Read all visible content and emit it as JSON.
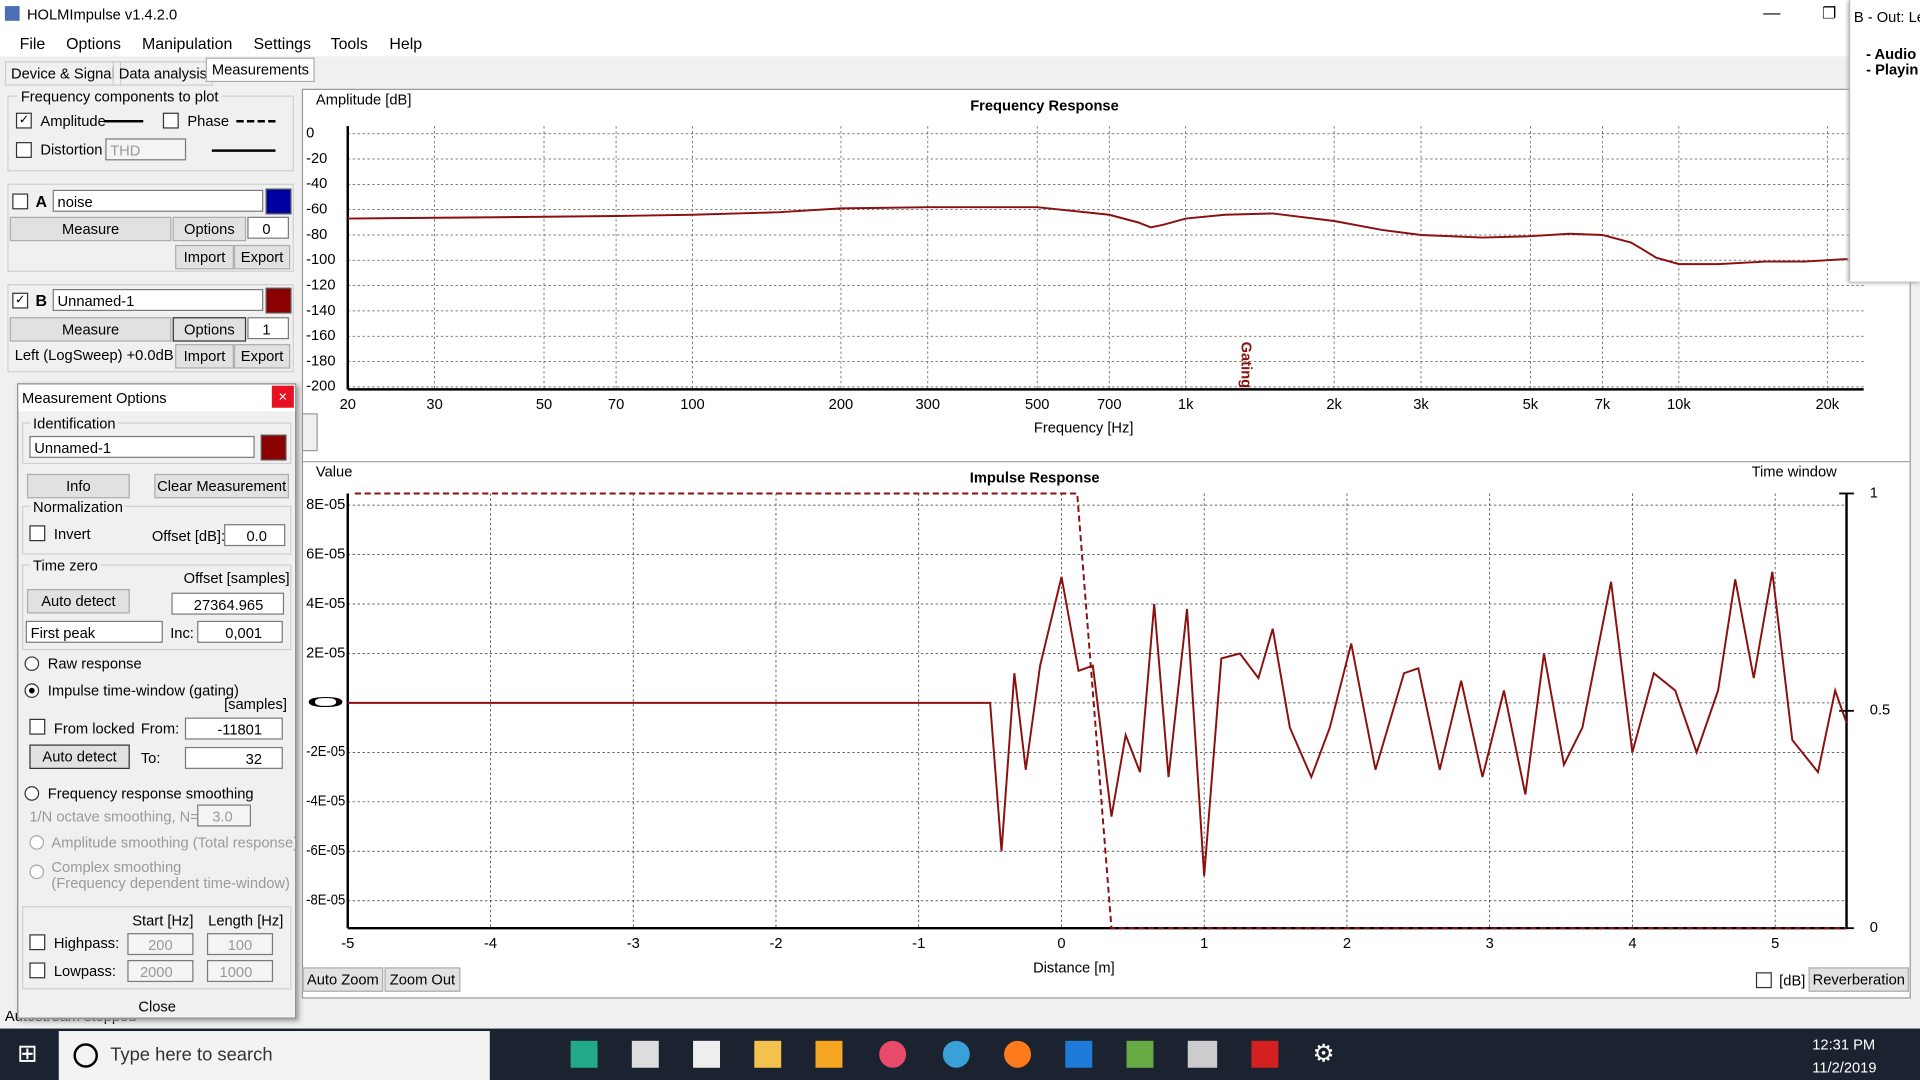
{
  "window": {
    "title": "HOLMImpulse  v1.4.2.0"
  },
  "menu": [
    "File",
    "Options",
    "Manipulation",
    "Settings",
    "Tools",
    "Help"
  ],
  "tabs": [
    "Device & Signal",
    "Data analysis",
    "Measurements"
  ],
  "plot_panel": {
    "title": "Frequency components to plot",
    "amplitude": "Amplitude",
    "phase": "Phase",
    "distortion": "Distortion",
    "distortion_type": "THD"
  },
  "channel_a": {
    "label": "A",
    "name": "noise",
    "measure": "Measure",
    "options": "Options",
    "count": "0",
    "import": "Import",
    "export": "Export"
  },
  "channel_b": {
    "label": "B",
    "name": "Unnamed-1",
    "measure": "Measure",
    "options": "Options",
    "count": "1",
    "import": "Import",
    "export": "Export",
    "info": "Left (LogSweep) +0.0dB"
  },
  "dialog": {
    "title": "Measurement Options",
    "identification": "Identification",
    "name": "Unnamed-1",
    "info": "Info",
    "clear": "Clear Measurement",
    "normalization": "Normalization",
    "invert": "Invert",
    "offset_db": "Offset [dB]:",
    "offset_db_value": "0.0",
    "time_zero": "Time zero",
    "offset_samples": "Offset [samples]",
    "auto_detect": "Auto detect",
    "offset_value": "27364.965",
    "peak_mode": "First peak",
    "inc": "Inc:",
    "inc_value": "0,001",
    "raw": "Raw response",
    "gating": "Impulse time-window (gating)",
    "samples": "[samples]",
    "from_locked": "From locked",
    "from": "From:",
    "from_value": "-11801",
    "auto_detect_2": "Auto detect",
    "to": "To:",
    "to_value": "32",
    "smoothing": "Frequency response smoothing",
    "octave": "1/N octave smoothing, N=",
    "octave_value": "3.0",
    "amp_smoothing": "Amplitude smoothing (Total response)",
    "complex_smoothing": "Complex smoothing",
    "complex_note": "(Frequency dependent time-window)",
    "start": "Start [Hz]",
    "length": "Length [Hz]",
    "highpass": "Highpass:",
    "hp_start": "200",
    "hp_length": "100",
    "lowpass": "Lowpass:",
    "lp_start": "2000",
    "lp_length": "1000",
    "close": "Close"
  },
  "status": "Autostream stopped",
  "bottom": {
    "auto_zoom": "Auto Zoom",
    "zoom_out": "Zoom Out",
    "db": "[dB]",
    "reverberation": "Reverberation"
  },
  "popup": {
    "title": "B - Out: Le",
    "line1": "- Audio",
    "line2": "- Playin"
  },
  "taskbar": {
    "search": "Type here to search",
    "time": "12:31 PM",
    "date": "11/2/2019"
  },
  "chart_data": [
    {
      "type": "line",
      "title": "Frequency Response",
      "ylabel": "Amplitude [dB]",
      "xlabel": "Frequency [Hz]",
      "xscale": "log",
      "grid": true,
      "color": "#8b1010",
      "xlim": [
        20,
        23700
      ],
      "ylim": [
        -202,
        6
      ],
      "xticks": [
        20,
        30,
        50,
        70,
        100,
        200,
        300,
        500,
        700,
        {
          "value": 1000,
          "label": "1k"
        },
        {
          "value": 2000,
          "label": "2k"
        },
        {
          "value": 3000,
          "label": "3k"
        },
        {
          "value": 5000,
          "label": "5k"
        },
        {
          "value": 7000,
          "label": "7k"
        },
        {
          "value": 10000,
          "label": "10k"
        },
        {
          "value": 20000,
          "label": "20k"
        }
      ],
      "yticks": [
        0,
        -20,
        -40,
        -60,
        -80,
        -100,
        -120,
        -140,
        -160,
        -180,
        -200
      ],
      "x": [
        20,
        40,
        70,
        100,
        150,
        200,
        300,
        500,
        700,
        800,
        850,
        900,
        1000,
        1200,
        1500,
        2000,
        2500,
        3000,
        4000,
        5000,
        6000,
        7000,
        8000,
        8500,
        9000,
        10000,
        12000,
        15000,
        18000,
        22000
      ],
      "values": [
        -67,
        -66,
        -65,
        -64,
        -62,
        -59,
        -58,
        -58,
        -64,
        -70,
        -74,
        -72,
        -67,
        -64,
        -63,
        -69,
        -76,
        -80,
        -82,
        -81,
        -79,
        -80,
        -86,
        -92,
        -98,
        -103,
        -103,
        -101,
        -101,
        -99
      ],
      "annotation": {
        "text": "Gating",
        "x": 1320
      }
    },
    {
      "type": "line",
      "title": "Impulse Response",
      "ylabel": "Value",
      "xlabel": "Distance [m]",
      "y2label": "Time window",
      "grid": true,
      "xlim": [
        -5,
        5.5
      ],
      "ylim": [
        -9.11e-05,
        8.47e-05
      ],
      "y2lim": [
        0,
        1
      ],
      "xticks": [
        -5,
        -4,
        -3,
        -2,
        -1,
        0,
        1,
        2,
        3,
        4,
        5
      ],
      "yticks": [
        {
          "value": 8e-05,
          "label": "8E-05"
        },
        {
          "value": 6e-05,
          "label": "6E-05"
        },
        {
          "value": 4e-05,
          "label": "4E-05"
        },
        {
          "value": 2e-05,
          "label": "2E-05"
        },
        0,
        {
          "value": -2e-05,
          "label": "-2E-05"
        },
        {
          "value": -4e-05,
          "label": "-4E-05"
        },
        {
          "value": -6e-05,
          "label": "-6E-05"
        },
        {
          "value": -8e-05,
          "label": "-8E-05"
        }
      ],
      "y2ticks": [
        0,
        0.5,
        1
      ],
      "series": [
        {
          "color": "#8b1010",
          "x": [
            -5,
            -4,
            -3,
            -2,
            -1,
            -0.5,
            -0.42,
            -0.33,
            -0.25,
            -0.15,
            0,
            0.12,
            0.22,
            0.35,
            0.45,
            0.55,
            0.65,
            0.75,
            0.88,
            1,
            1.12,
            1.25,
            1.38,
            1.48,
            1.6,
            1.75,
            1.88,
            2.03,
            2.2,
            2.4,
            2.5,
            2.65,
            2.8,
            2.95,
            3.1,
            3.25,
            3.38,
            3.52,
            3.65,
            3.85,
            4,
            4.15,
            4.3,
            4.45,
            4.6,
            4.72,
            4.85,
            4.98,
            5.12,
            5.3,
            5.42,
            5.5
          ],
          "values": [
            0,
            0,
            0,
            0,
            0,
            0,
            -6e-05,
            1.2e-05,
            -2.7e-05,
            1.5e-05,
            5.1e-05,
            1.3e-05,
            1.5e-05,
            -4.6e-05,
            -1.3e-05,
            -2.8e-05,
            4e-05,
            -3e-05,
            3.8e-05,
            -7e-05,
            1.8e-05,
            2e-05,
            1e-05,
            3e-05,
            -1e-05,
            -3e-05,
            -1e-05,
            2.4e-05,
            -2.7e-05,
            1.2e-05,
            1.4e-05,
            -2.7e-05,
            9e-06,
            -3e-05,
            5e-06,
            -3.7e-05,
            2e-05,
            -2.5e-05,
            -1e-05,
            4.9e-05,
            -2e-05,
            1.2e-05,
            5e-06,
            -2e-05,
            5e-06,
            5e-05,
            1e-05,
            5.3e-05,
            -1.5e-05,
            -2.8e-05,
            5e-06,
            -8e-06
          ]
        },
        {
          "color": "#8b1010",
          "axis": "y2",
          "dashed": true,
          "x": [
            -4.95,
            0.11,
            0.35,
            5.5
          ],
          "values": [
            1,
            1,
            0,
            0
          ]
        }
      ]
    }
  ]
}
